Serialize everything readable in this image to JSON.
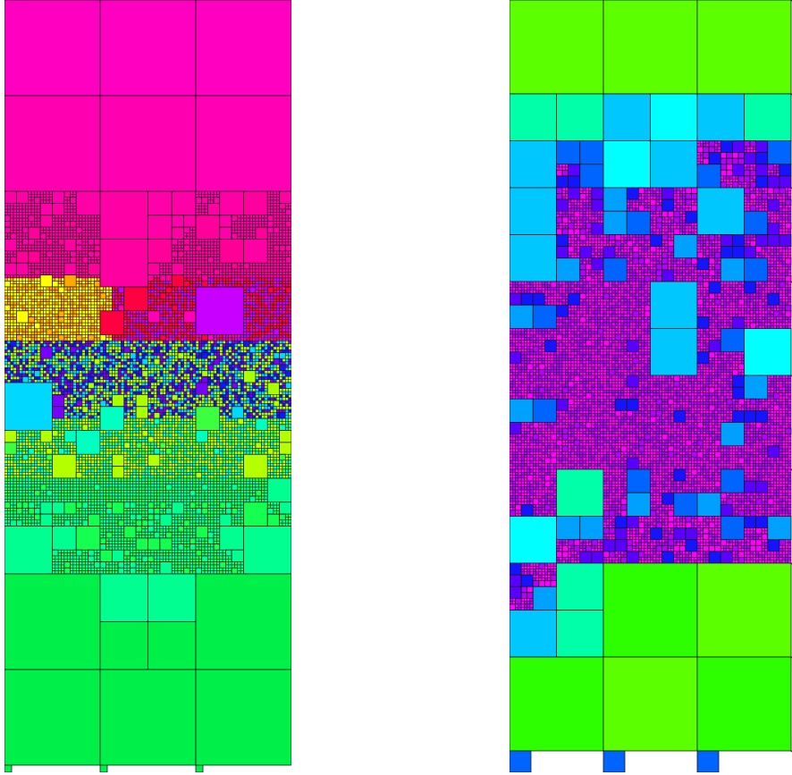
{
  "panels": [
    {
      "id": "left",
      "coloring": "vertical-hue-gradient",
      "palette": [
        "#ff00c8",
        "#ff0060",
        "#ffff00",
        "#ffa000",
        "#1414ff",
        "#7800ff",
        "#aaff00",
        "#00d8ff",
        "#00ffc0",
        "#00ff60",
        "#00f04a"
      ]
    },
    {
      "id": "right",
      "coloring": "size-based",
      "palette": [
        "#5cff00",
        "#00c8ff",
        "#00ffff",
        "#00ffa8",
        "#0060ff",
        "#1414ff",
        "#7800ff",
        "#c800ff",
        "#ff00ff"
      ]
    }
  ]
}
